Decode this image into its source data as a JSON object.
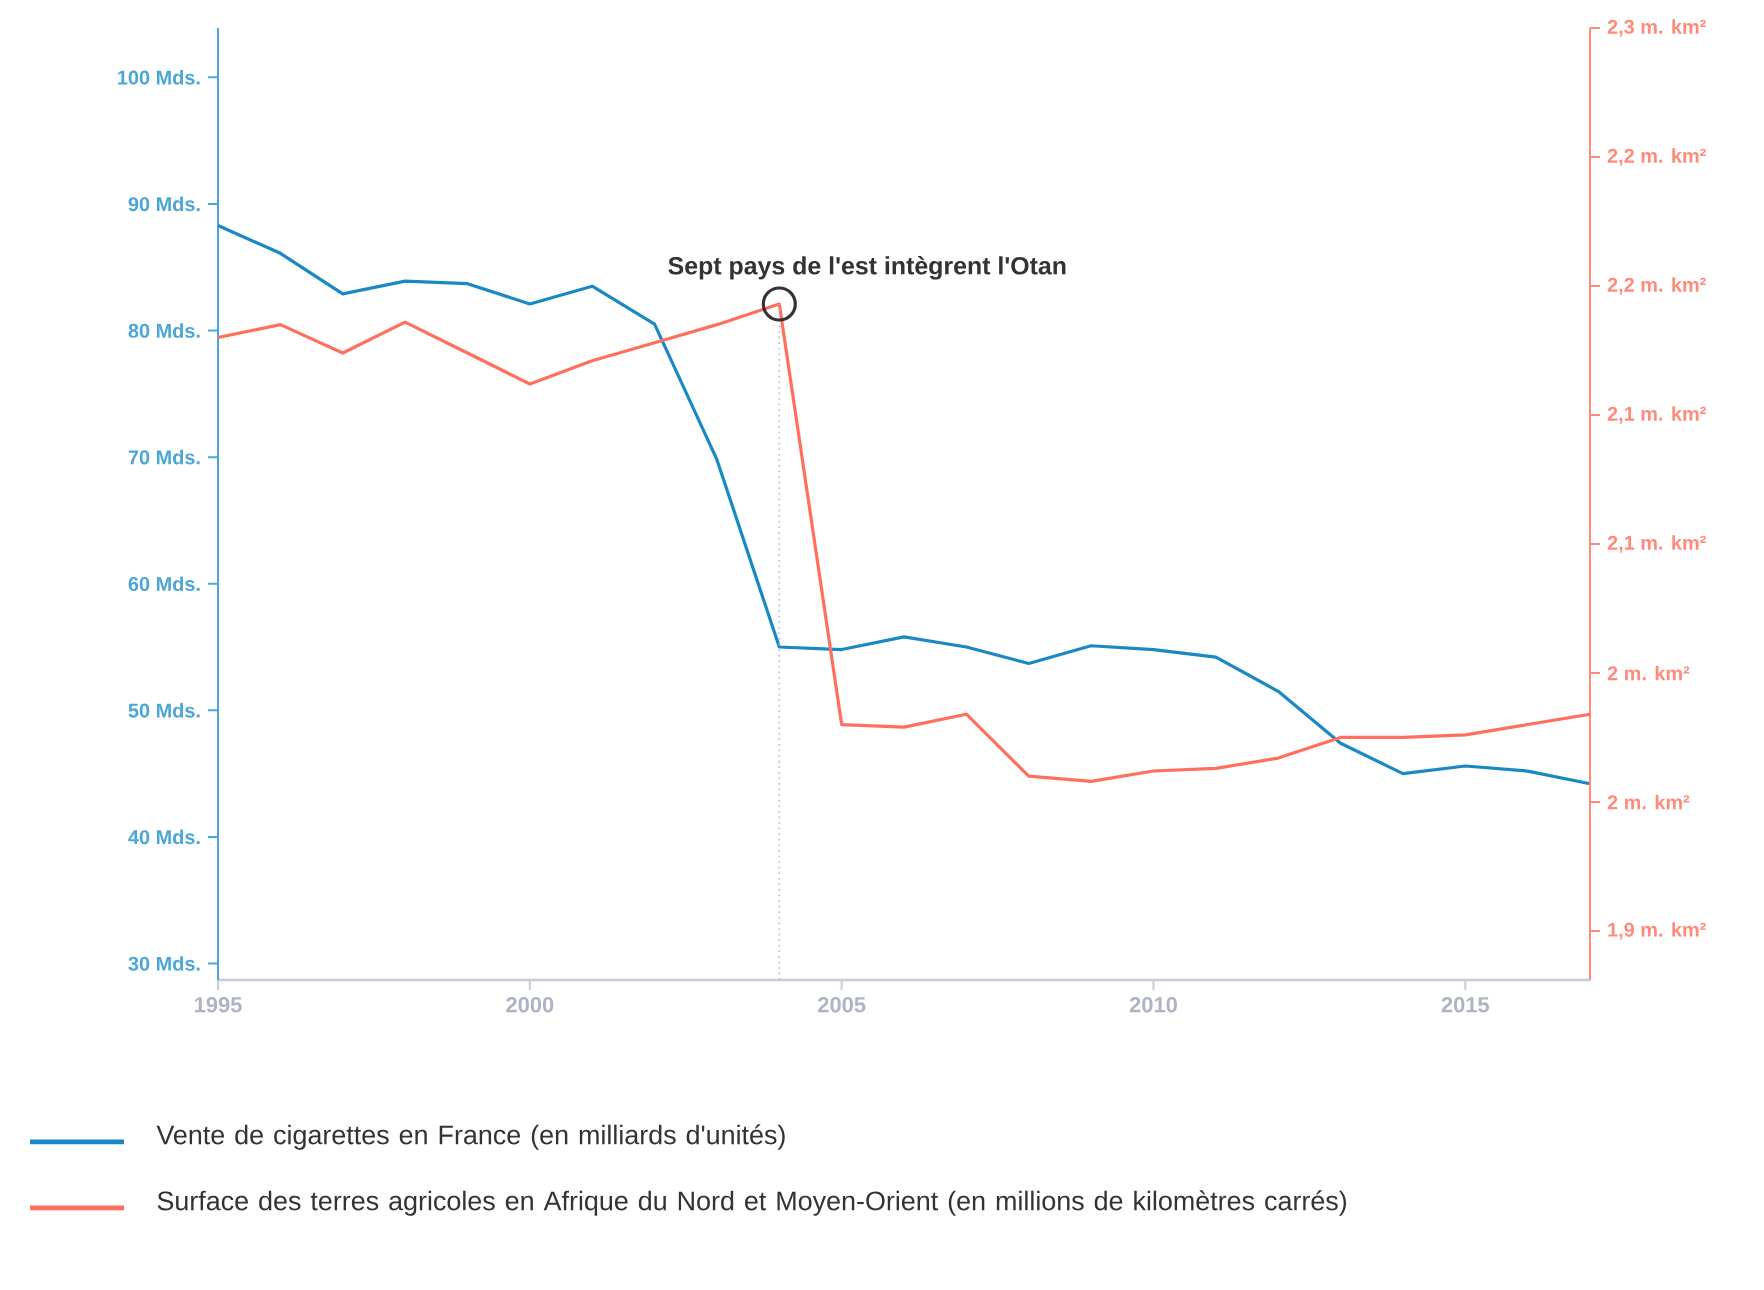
{
  "chart_data": {
    "type": "line",
    "x": [
      1995,
      1996,
      1997,
      1998,
      1999,
      2000,
      2001,
      2002,
      2003,
      2004,
      2005,
      2006,
      2007,
      2008,
      2009,
      2010,
      2011,
      2012,
      2013,
      2014,
      2015,
      2016,
      2017
    ],
    "series": [
      {
        "name": "Vente de cigarettes en France (en milliards d'unités)",
        "color": "#1a88c4",
        "values": [
          88.3,
          86.1,
          82.9,
          83.9,
          83.7,
          82.1,
          83.5,
          80.5,
          69.8,
          55.0,
          54.8,
          55.8,
          55.0,
          53.7,
          55.1,
          54.8,
          54.2,
          51.5,
          47.4,
          45.0,
          45.6,
          45.2,
          44.2
        ]
      },
      {
        "name": "Surface des terres agricoles en Afrique du Nord et Moyen-Orient (en millions de kilomètres carrés)",
        "color": "#ff6f5e",
        "axis": "y2",
        "values": [
          2.13,
          2.135,
          2.124,
          2.136,
          2.124,
          2.112,
          2.121,
          2.128,
          2.135,
          2.143,
          1.98,
          1.979,
          1.984,
          1.96,
          1.958,
          1.962,
          1.963,
          1.967,
          1.975,
          1.975,
          1.976,
          1.98,
          1.984
        ]
      }
    ],
    "xlim": [
      1995,
      2017
    ],
    "xticks": [
      1995,
      2000,
      2005,
      2010,
      2015
    ],
    "ylim": [
      28.7,
      103.9
    ],
    "yticks": [
      {
        "value": 30,
        "label": "30 Mds."
      },
      {
        "value": 40,
        "label": "40 Mds."
      },
      {
        "value": 50,
        "label": "50 Mds."
      },
      {
        "value": 60,
        "label": "60 Mds."
      },
      {
        "value": 70,
        "label": "70 Mds."
      },
      {
        "value": 80,
        "label": "80 Mds."
      },
      {
        "value": 90,
        "label": "90 Mds."
      },
      {
        "value": 100,
        "label": "100 Mds."
      }
    ],
    "y2lim": [
      1.881,
      2.25
    ],
    "y2ticks": [
      {
        "value": 1.9,
        "label": "1,9 m. km²"
      },
      {
        "value": 1.95,
        "label": "2 m. km²"
      },
      {
        "value": 2.0,
        "label": "2 m. km²"
      },
      {
        "value": 2.05,
        "label": "2,1 m. km²"
      },
      {
        "value": 2.1,
        "label": "2,1 m. km²"
      },
      {
        "value": 2.15,
        "label": "2,2 m. km²"
      },
      {
        "value": 2.2,
        "label": "2,2 m. km²"
      },
      {
        "value": 2.25,
        "label": "2,3 m. km²"
      }
    ],
    "ref_lines": [
      {
        "axis": "x",
        "value": 2004,
        "color": "#b8bcc8",
        "line_style": "dotted"
      }
    ],
    "annotations": [
      "Sept pays de l'est intègrent l'Otan"
    ],
    "legend": "bottom"
  }
}
